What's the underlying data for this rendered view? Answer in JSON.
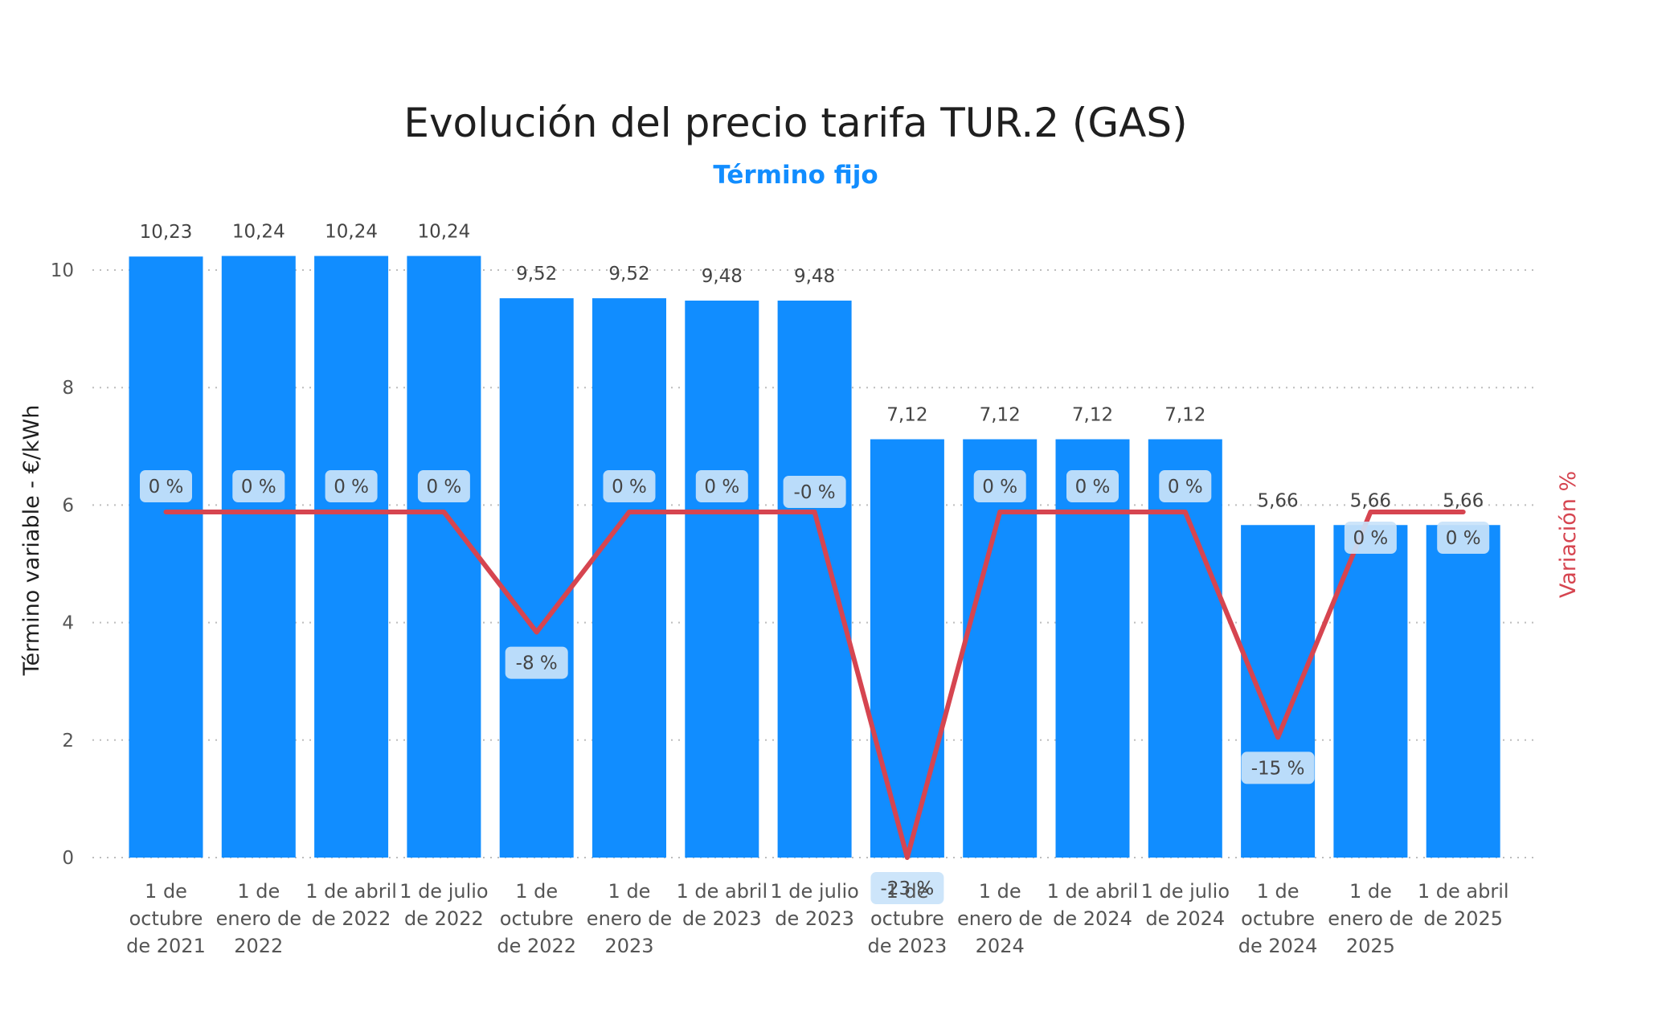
{
  "chart_data": {
    "type": "bar",
    "title": "Evolución del precio tarifa TUR.2 (GAS)",
    "subtitle": "Término fijo",
    "ylabel": "Término variable - €/kWh",
    "y2label": "Variación %",
    "ylim": [
      0,
      10
    ],
    "yticks": [
      "0",
      "2",
      "4",
      "6",
      "8",
      "10"
    ],
    "grid": true,
    "categories": [
      [
        "1 de",
        "octubre",
        "de 2021"
      ],
      [
        "1 de",
        "enero de",
        "2022"
      ],
      [
        "1 de abril",
        "de 2022"
      ],
      [
        "1 de julio",
        "de 2022"
      ],
      [
        "1 de",
        "octubre",
        "de 2022"
      ],
      [
        "1 de",
        "enero de",
        "2023"
      ],
      [
        "1 de abril",
        "de 2023"
      ],
      [
        "1 de julio",
        "de 2023"
      ],
      [
        "1 de",
        "octubre",
        "de 2023"
      ],
      [
        "1 de",
        "enero de",
        "2024"
      ],
      [
        "1 de abril",
        "de 2024"
      ],
      [
        "1 de julio",
        "de 2024"
      ],
      [
        "1 de",
        "octubre",
        "de 2024"
      ],
      [
        "1 de",
        "enero de",
        "2025"
      ],
      [
        "1 de abril",
        "de 2025"
      ]
    ],
    "values": [
      10.23,
      10.24,
      10.24,
      10.24,
      9.52,
      9.52,
      9.48,
      9.48,
      7.12,
      7.12,
      7.12,
      7.12,
      5.66,
      5.66,
      5.66
    ],
    "value_labels": [
      "10,23",
      "10,24",
      "10,24",
      "10,24",
      "9,52",
      "9,52",
      "9,48",
      "9,48",
      "7,12",
      "7,12",
      "7,12",
      "7,12",
      "5,66",
      "5,66",
      "5,66"
    ],
    "variation": [
      0,
      0,
      0,
      0,
      -8,
      0,
      0,
      0,
      -23,
      0,
      0,
      0,
      -15,
      0,
      0
    ],
    "variation_labels": [
      "0 %",
      "0 %",
      "0 %",
      "0 %",
      "-8 %",
      "0 %",
      "0 %",
      "-0 %",
      "-23 %",
      "0 %",
      "0 %",
      "0 %",
      "-15 %",
      "0 %",
      "0 %"
    ],
    "bar_color": "#118DFF",
    "line_color": "#D64550",
    "label_bg": "#C9E3FA"
  }
}
